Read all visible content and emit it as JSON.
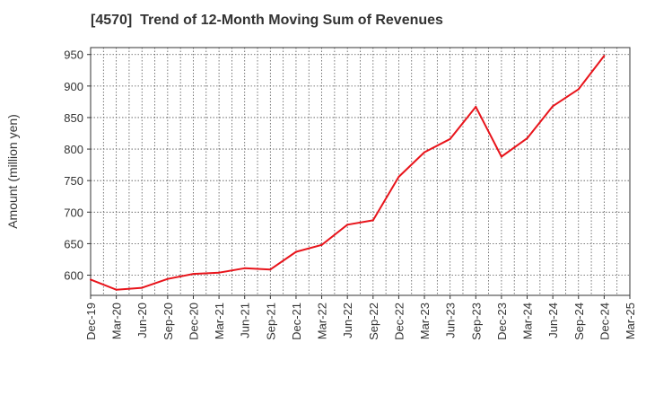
{
  "chart_data": {
    "type": "line",
    "title": "[4570]  Trend of 12-Month Moving Sum of Revenues",
    "xlabel": "",
    "ylabel": "Amount (million yen)",
    "x": [
      "Dec-19",
      "Mar-20",
      "Jun-20",
      "Sep-20",
      "Dec-20",
      "Mar-21",
      "Jun-21",
      "Sep-21",
      "Dec-21",
      "Mar-22",
      "Jun-22",
      "Sep-22",
      "Dec-22",
      "Mar-23",
      "Jun-23",
      "Sep-23",
      "Dec-23",
      "Mar-24",
      "Jun-24",
      "Sep-24",
      "Dec-24",
      "Mar-25"
    ],
    "series": [
      {
        "name": "",
        "color": "#e8141b",
        "values": [
          593,
          577,
          580,
          594,
          602,
          604,
          611,
          609,
          637,
          648,
          680,
          687,
          756,
          795,
          816,
          867,
          788,
          817,
          868,
          895,
          948,
          null
        ]
      }
    ],
    "yticks": [
      600,
      650,
      700,
      750,
      800,
      850,
      900,
      950
    ],
    "ylim": [
      568,
      961
    ],
    "grid": true,
    "legend": "none"
  }
}
